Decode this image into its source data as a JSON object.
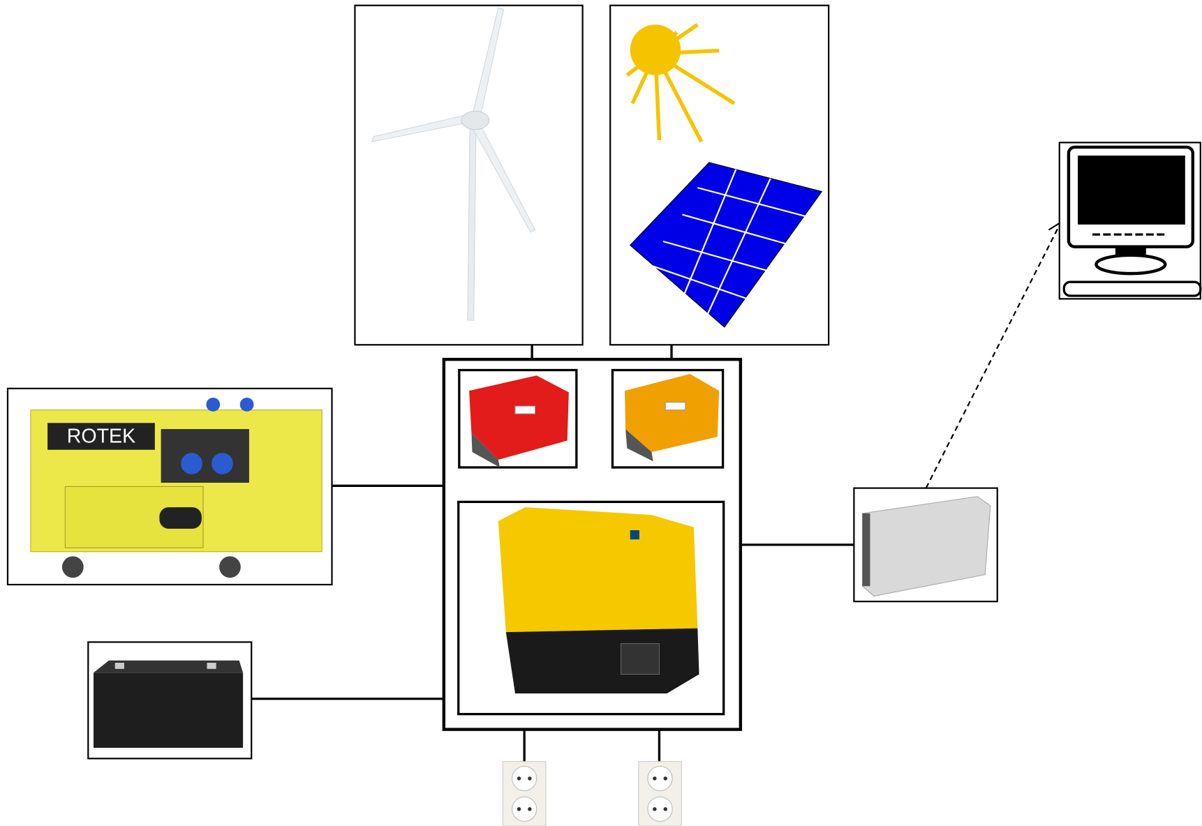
{
  "generator": {
    "brand": "ROTEK"
  }
}
